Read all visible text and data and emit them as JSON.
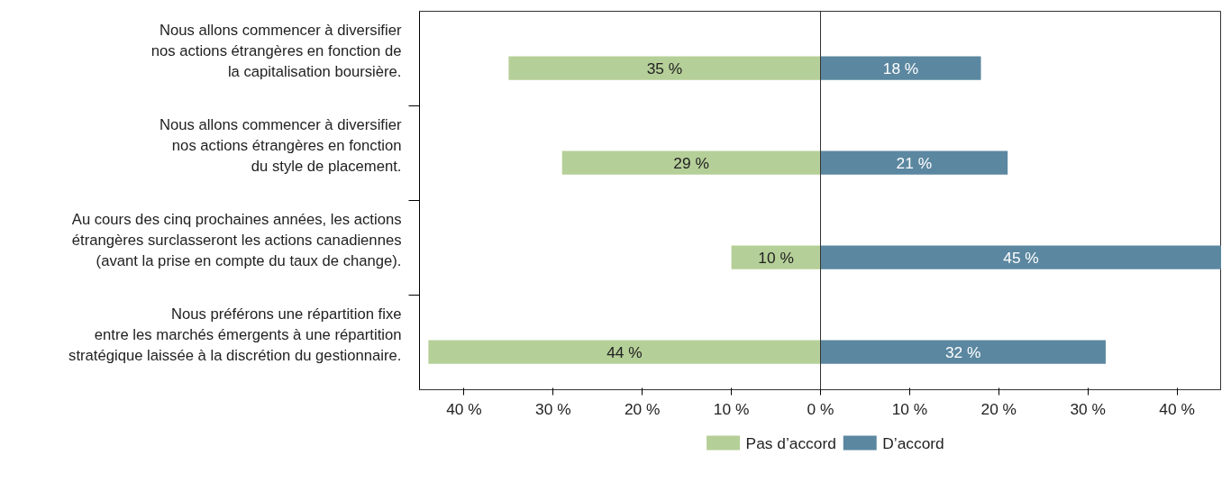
{
  "chart_data": {
    "type": "bar",
    "orientation": "horizontal",
    "categories": [
      "Nous allons commencer à diversifier\nnos actions étrangères en fonction de\nla capitalisation boursière.",
      "Nous allons commencer à diversifier\nnos actions étrangères en fonction\ndu style de placement.",
      "Au cours des cinq prochaines années, les actions\nétrangères surclasseront les actions canadiennes\n(avant la prise en compte du taux de change).",
      "Nous préférons une répartition fixe\nentre les marchés émergents à une répartition\nstratégique laissée à la discrétion du gestionnaire."
    ],
    "series": [
      {
        "name": "Pas d’accord",
        "color": "#b5cf98",
        "base": [
          -35,
          -29,
          -10,
          -44
        ],
        "values": [
          35,
          29,
          10,
          44
        ],
        "value_labels": [
          "35 %",
          "29 %",
          "10 %",
          "44 %"
        ]
      },
      {
        "name": "D’accord",
        "color": "#5b87a0",
        "values": [
          18,
          21,
          45,
          32
        ],
        "value_labels": [
          "18 %",
          "21 %",
          "45 %",
          "32 %"
        ]
      }
    ],
    "xlim": [
      -45,
      45
    ],
    "xticks": [
      {
        "value": -40,
        "label": "40 %"
      },
      {
        "value": -30,
        "label": "30 %"
      },
      {
        "value": -20,
        "label": "20 %"
      },
      {
        "value": -10,
        "label": "10 %"
      },
      {
        "value": 0,
        "label": "0 %"
      },
      {
        "value": 10,
        "label": "10 %"
      },
      {
        "value": 20,
        "label": "20 %"
      },
      {
        "value": 30,
        "label": "30 %"
      },
      {
        "value": 40,
        "label": "40 %"
      }
    ],
    "ref_lines": [
      {
        "axis": "x",
        "value": 0
      }
    ],
    "grid": false,
    "legend": "bottom"
  }
}
